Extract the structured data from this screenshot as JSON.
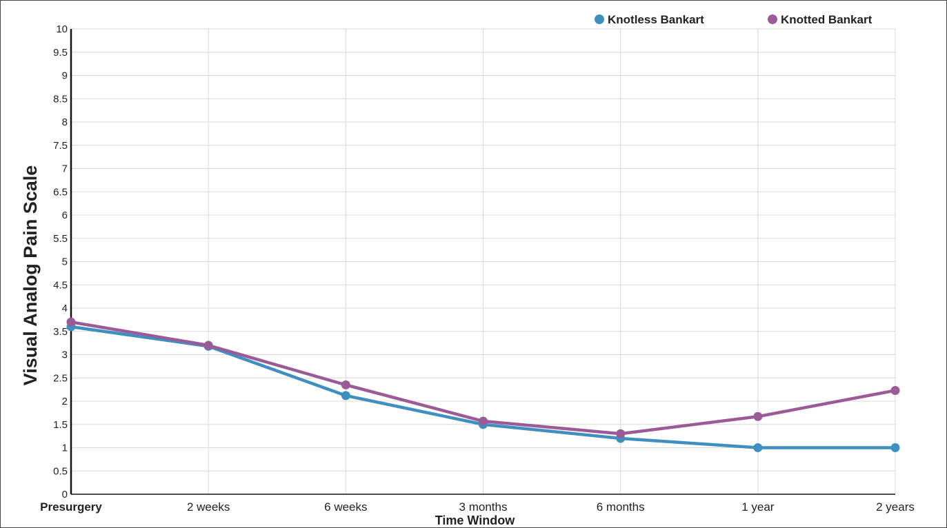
{
  "chart_data": {
    "type": "line",
    "title": "",
    "xlabel": "Time Window",
    "ylabel": "Visual Analog Pain Scale",
    "categories": [
      "Presurgery",
      "2 weeks",
      "6 weeks",
      "3 months",
      "6 months",
      "1 year",
      "2 years"
    ],
    "bold_categories": [
      "Presurgery"
    ],
    "ylim": [
      0,
      10
    ],
    "ytick_step": 0.5,
    "ytick_labels": [
      "0",
      "0.5",
      "1",
      "1.5",
      "2",
      "2.5",
      "3",
      "3.5",
      "4",
      "4.5",
      "5",
      "5.5",
      "6",
      "6.5",
      "7",
      "7.5",
      "8",
      "8.5",
      "9",
      "9.5",
      "10"
    ],
    "grid": true,
    "legend_position": "top-right",
    "series": [
      {
        "name": "Knotless Bankart",
        "color": "#3f8fc0",
        "values": [
          3.6,
          3.18,
          2.12,
          1.5,
          1.2,
          1.0,
          1.0
        ]
      },
      {
        "name": "Knotted Bankart",
        "color": "#9b5b97",
        "values": [
          3.7,
          3.2,
          2.35,
          1.57,
          1.3,
          1.67,
          2.23
        ]
      }
    ]
  }
}
